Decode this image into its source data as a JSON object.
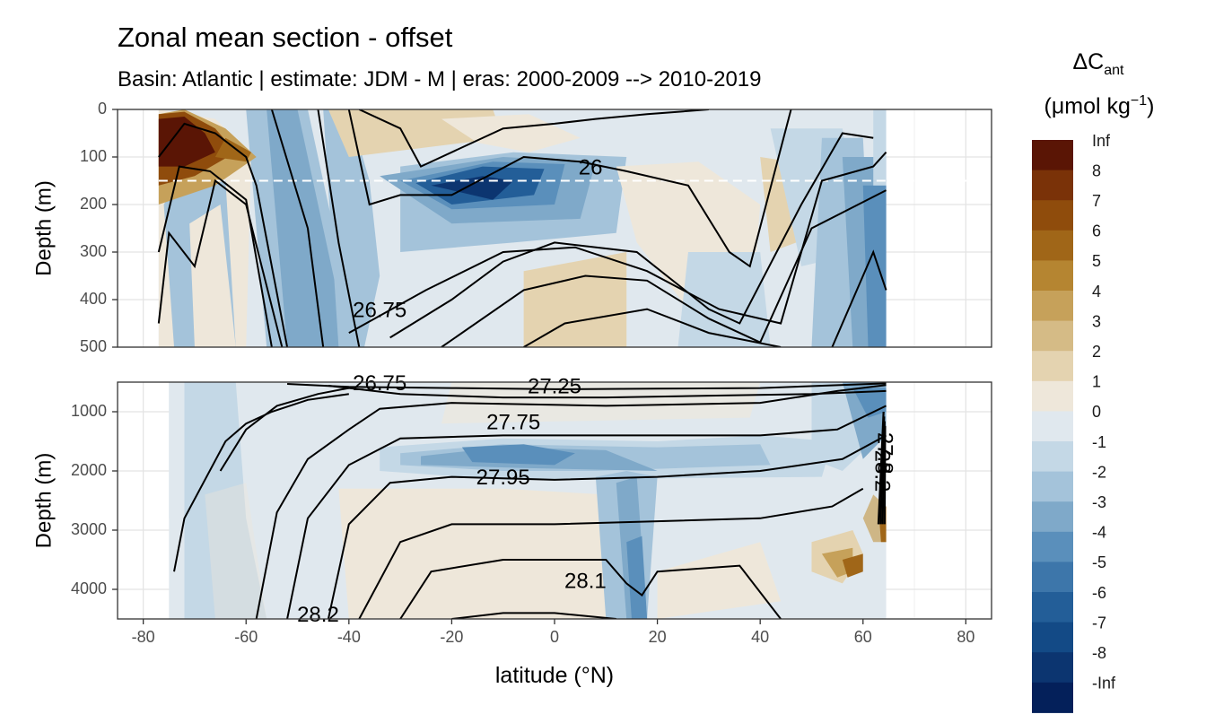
{
  "title": "Zonal mean section - offset",
  "subtitle": "Basin: Atlantic | estimate: JDM - M | eras: 2000-2009 --> 2010-2019",
  "legend": {
    "title_main": "ΔC",
    "title_sub": "ant",
    "units_main": "(μmol kg",
    "units_sup": "−1",
    "units_close": ")",
    "labels": [
      "Inf",
      "8",
      "7",
      "6",
      "5",
      "4",
      "3",
      "2",
      "1",
      "0",
      "-1",
      "-2",
      "-3",
      "-4",
      "-5",
      "-6",
      "-7",
      "-8",
      "-Inf"
    ],
    "colors": [
      "#5a1505",
      "#7a3208",
      "#8f4c0c",
      "#a06618",
      "#b58531",
      "#c6a15a",
      "#d5bb86",
      "#e4d3b0",
      "#eee7da",
      "#e0e8ee",
      "#c4d8e6",
      "#a4c3da",
      "#7fa9c9",
      "#5a8fbb",
      "#3d76aa",
      "#235e98",
      "#134a86",
      "#0c3570",
      "#04205a"
    ]
  },
  "chart_data": [
    {
      "type": "contour",
      "panel": "upper",
      "xlabel": "",
      "ylabel": "Depth (m)",
      "xlim": [
        -85,
        85
      ],
      "ylim": [
        500,
        0
      ],
      "yticks": [
        0,
        100,
        200,
        300,
        400,
        500
      ],
      "reference_depth": 150,
      "contour_labels": [
        {
          "text": "26",
          "x": 7,
          "y": 125
        },
        {
          "text": "26.75",
          "x": -34,
          "y": 425
        }
      ]
    },
    {
      "type": "contour",
      "panel": "lower",
      "xlabel": "latitude (°N)",
      "ylabel": "Depth (m)",
      "xlim": [
        -85,
        85
      ],
      "ylim": [
        4500,
        500
      ],
      "yticks": [
        1000,
        2000,
        3000,
        4000
      ],
      "xticks": [
        -80,
        -60,
        -40,
        -20,
        0,
        20,
        40,
        60,
        80
      ],
      "contour_labels": [
        {
          "text": "26.75",
          "x": -34,
          "y": 540
        },
        {
          "text": "27.25",
          "x": 0,
          "y": 590
        },
        {
          "text": "27.75",
          "x": -8,
          "y": 1200
        },
        {
          "text": "27.95",
          "x": -10,
          "y": 2130
        },
        {
          "text": "28.1",
          "x": 6,
          "y": 3880
        },
        {
          "text": "28.2",
          "x": -46,
          "y": 4450
        },
        {
          "text": "28.2",
          "x": 63.5,
          "y": 2000
        },
        {
          "text": "27.8",
          "x": 64,
          "y": 1700
        }
      ]
    }
  ]
}
